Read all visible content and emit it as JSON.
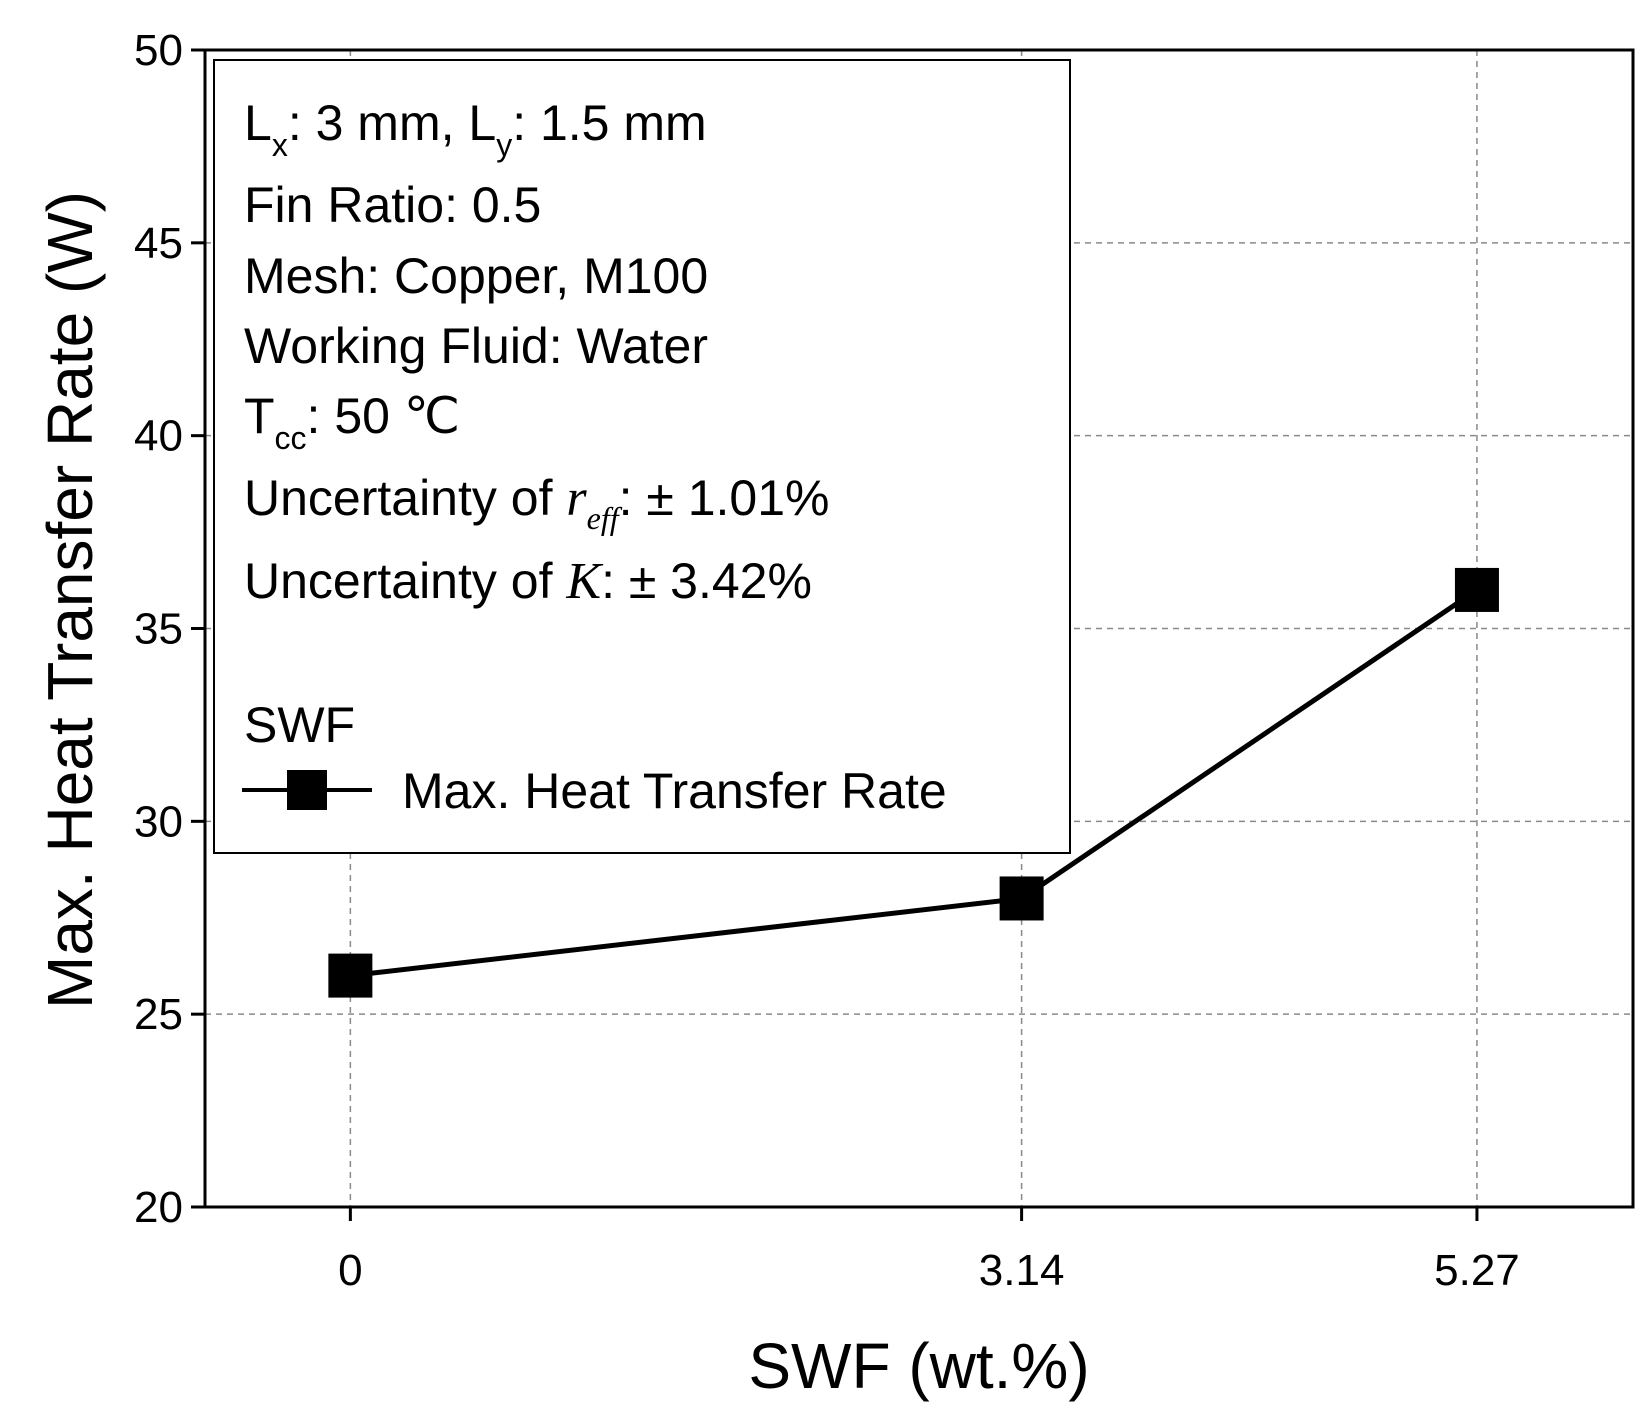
{
  "chart_data": {
    "type": "line",
    "title": "",
    "xlabel": "SWF (wt.%)",
    "ylabel": "Max. Heat Transfer Rate (W)",
    "categories": [
      "0",
      "3.14",
      "5.27"
    ],
    "x": [
      0,
      3.14,
      5.27
    ],
    "series": [
      {
        "name": "Max. Heat Transfer Rate",
        "values": [
          26,
          28,
          36
        ],
        "marker": "square",
        "color": "#000000"
      }
    ],
    "xlim": [
      -0.68,
      6.0
    ],
    "ylim": [
      20,
      50
    ],
    "yticks": [
      20,
      25,
      30,
      35,
      40,
      45,
      50
    ],
    "yticks_labels": [
      "20",
      "25",
      "30",
      "35",
      "40",
      "45",
      "50"
    ],
    "grid": true,
    "legend": {
      "position": "top-left",
      "title": "SWF",
      "entry": "Max. Heat Transfer Rate"
    },
    "annotations": {
      "lx_base": "L",
      "lx_sub": "x",
      "lx_value": ": 3 mm, ",
      "ly_base": "L",
      "ly_sub": "y",
      "ly_value": ": 1.5 mm",
      "fin_ratio": "Fin Ratio: 0.5",
      "mesh": "Mesh: Copper, M100",
      "working_fluid": "Working Fluid: Water",
      "tcc_base": "T",
      "tcc_sub": "cc",
      "tcc_value": ": 50 ",
      "tcc_unit": "℃",
      "unc_reff_prefix": "Uncertainty of ",
      "unc_reff_symbol": "r",
      "unc_reff_sub": "eff",
      "unc_reff_value": ": ± 1.01%",
      "unc_k_prefix": "Uncertainty of ",
      "unc_k_symbol": "K",
      "unc_k_value": ": ± 3.42%"
    }
  }
}
